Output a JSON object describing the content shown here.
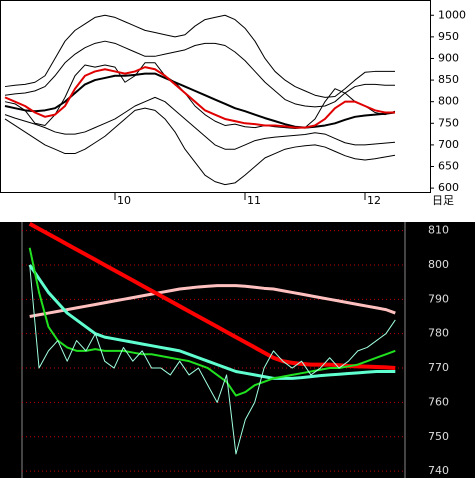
{
  "chart_data": [
    {
      "type": "line",
      "categories": [
        null,
        null,
        null,
        null,
        null,
        null,
        null,
        null,
        null,
        null,
        null,
        "10",
        null,
        null,
        null,
        null,
        null,
        null,
        null,
        null,
        null,
        null,
        null,
        null,
        "11",
        null,
        null,
        null,
        null,
        null,
        null,
        null,
        null,
        null,
        null,
        null,
        "12",
        null,
        null,
        null
      ],
      "x_label": "日足",
      "ylim": [
        591,
        1033
      ],
      "yticks": [
        600,
        650,
        700,
        750,
        800,
        850,
        900,
        950,
        1000
      ],
      "series": [
        {
          "color": "#000000",
          "values": [
            835,
            838,
            840,
            845,
            860,
            900,
            940,
            965,
            980,
            995,
            1000,
            995,
            985,
            975,
            965,
            960,
            955,
            950,
            955,
            975,
            990,
            995,
            1000,
            990,
            970,
            940,
            900,
            870,
            850,
            835,
            825,
            815,
            810,
            812,
            830,
            850,
            868,
            870,
            870,
            870
          ]
        },
        {
          "color": "#000000",
          "values": [
            815,
            818,
            820,
            825,
            835,
            860,
            890,
            910,
            925,
            935,
            940,
            935,
            925,
            915,
            905,
            905,
            910,
            915,
            920,
            930,
            935,
            935,
            930,
            915,
            895,
            870,
            845,
            825,
            805,
            795,
            790,
            788,
            790,
            800,
            820,
            835,
            840,
            840,
            838,
            838
          ]
        },
        {
          "color": "#000000",
          "values": [
            770,
            762,
            755,
            748,
            740,
            730,
            725,
            725,
            730,
            740,
            750,
            760,
            775,
            790,
            800,
            810,
            800,
            780,
            760,
            740,
            720,
            700,
            690,
            690,
            700,
            710,
            715,
            718,
            720,
            722,
            724,
            728,
            725,
            715,
            705,
            700,
            700,
            702,
            704,
            706
          ]
        },
        {
          "color": "#000000",
          "values": [
            760,
            745,
            730,
            715,
            700,
            690,
            680,
            680,
            690,
            705,
            720,
            740,
            760,
            780,
            785,
            780,
            760,
            730,
            690,
            660,
            630,
            615,
            608,
            612,
            630,
            650,
            670,
            680,
            690,
            695,
            698,
            700,
            695,
            685,
            675,
            668,
            665,
            668,
            672,
            676
          ]
        },
        {
          "color": "#000000",
          "values": [
            800,
            795,
            780,
            750,
            745,
            770,
            810,
            860,
            885,
            880,
            885,
            880,
            845,
            860,
            890,
            890,
            860,
            845,
            820,
            790,
            770,
            755,
            745,
            748,
            742,
            740,
            745,
            742,
            740,
            738,
            740,
            760,
            800,
            830,
            820,
            800,
            790,
            775,
            770,
            778
          ]
        },
        {
          "color": "#000000",
          "values": [
            790,
            785,
            780,
            778,
            780,
            785,
            800,
            820,
            840,
            850,
            855,
            860,
            860,
            862,
            865,
            865,
            855,
            845,
            835,
            825,
            815,
            805,
            795,
            785,
            778,
            770,
            762,
            755,
            748,
            742,
            740,
            742,
            745,
            750,
            758,
            765,
            768,
            770,
            772,
            775
          ]
        },
        {
          "color": "#e00000",
          "values": [
            810,
            800,
            790,
            775,
            765,
            770,
            790,
            830,
            860,
            870,
            875,
            870,
            865,
            870,
            880,
            875,
            860,
            840,
            820,
            800,
            780,
            770,
            760,
            755,
            750,
            748,
            745,
            745,
            743,
            740,
            740,
            745,
            760,
            785,
            800,
            800,
            790,
            780,
            775,
            775
          ]
        }
      ]
    },
    {
      "type": "line",
      "ylim": [
        738,
        812.5
      ],
      "yticks": [
        740,
        750,
        760,
        770,
        780,
        790,
        800,
        810
      ],
      "series": [
        {
          "color": "#ffc0c0",
          "values": [
            785,
            785.5,
            786,
            786.5,
            787,
            787.5,
            788,
            788.5,
            789,
            789.5,
            790,
            790.5,
            791,
            791.5,
            792,
            792.5,
            793,
            793.3,
            793.6,
            793.8,
            794,
            794,
            794,
            793.8,
            793.5,
            793.2,
            793,
            792.5,
            792,
            791.5,
            791,
            790.5,
            790,
            789.5,
            789,
            788.5,
            788,
            787.5,
            787,
            786
          ]
        },
        {
          "color": "#ff0000",
          "values": [
            812,
            810.5,
            809,
            807.5,
            806,
            804.5,
            803,
            801.5,
            800,
            798.5,
            797,
            795.5,
            794,
            792.5,
            791,
            789.5,
            788,
            786.5,
            785,
            783.5,
            782,
            780.5,
            779,
            777.5,
            776,
            774.5,
            773,
            772,
            771.5,
            771.2,
            771,
            771,
            771,
            770.8,
            770.6,
            770.5,
            770.4,
            770.3,
            770.2,
            770
          ]
        },
        {
          "color": "#60ffd0",
          "values": [
            800,
            796,
            792,
            789,
            786,
            784,
            782,
            780,
            779,
            778.5,
            778,
            777.5,
            777,
            776.5,
            776,
            775.5,
            775,
            774,
            773,
            772,
            771,
            770,
            769,
            768.5,
            768,
            767.5,
            767,
            767,
            767,
            767.2,
            767.5,
            767.8,
            768,
            768.2,
            768.4,
            768.6,
            768.8,
            769,
            769,
            769
          ]
        },
        {
          "color": "#20e020",
          "values": [
            805,
            792,
            782,
            778,
            776,
            775,
            775,
            775.5,
            775,
            775,
            775,
            774.5,
            774,
            774,
            773.5,
            773,
            772.5,
            772,
            771,
            770,
            768,
            766,
            762,
            763,
            765,
            766,
            767,
            767.5,
            768,
            768.5,
            769,
            769.5,
            770,
            770,
            770.5,
            771,
            772,
            773,
            774,
            775
          ]
        },
        {
          "color": "#a0ffe0",
          "values": [
            800,
            770,
            775,
            778,
            772,
            778,
            775,
            780,
            772,
            770,
            776,
            772,
            775,
            770,
            770,
            768,
            772,
            768,
            770,
            765,
            760,
            768,
            745,
            755,
            760,
            770,
            775,
            772,
            770,
            772,
            768,
            770,
            773,
            770,
            772,
            775,
            776,
            778,
            780,
            784
          ]
        }
      ]
    }
  ]
}
